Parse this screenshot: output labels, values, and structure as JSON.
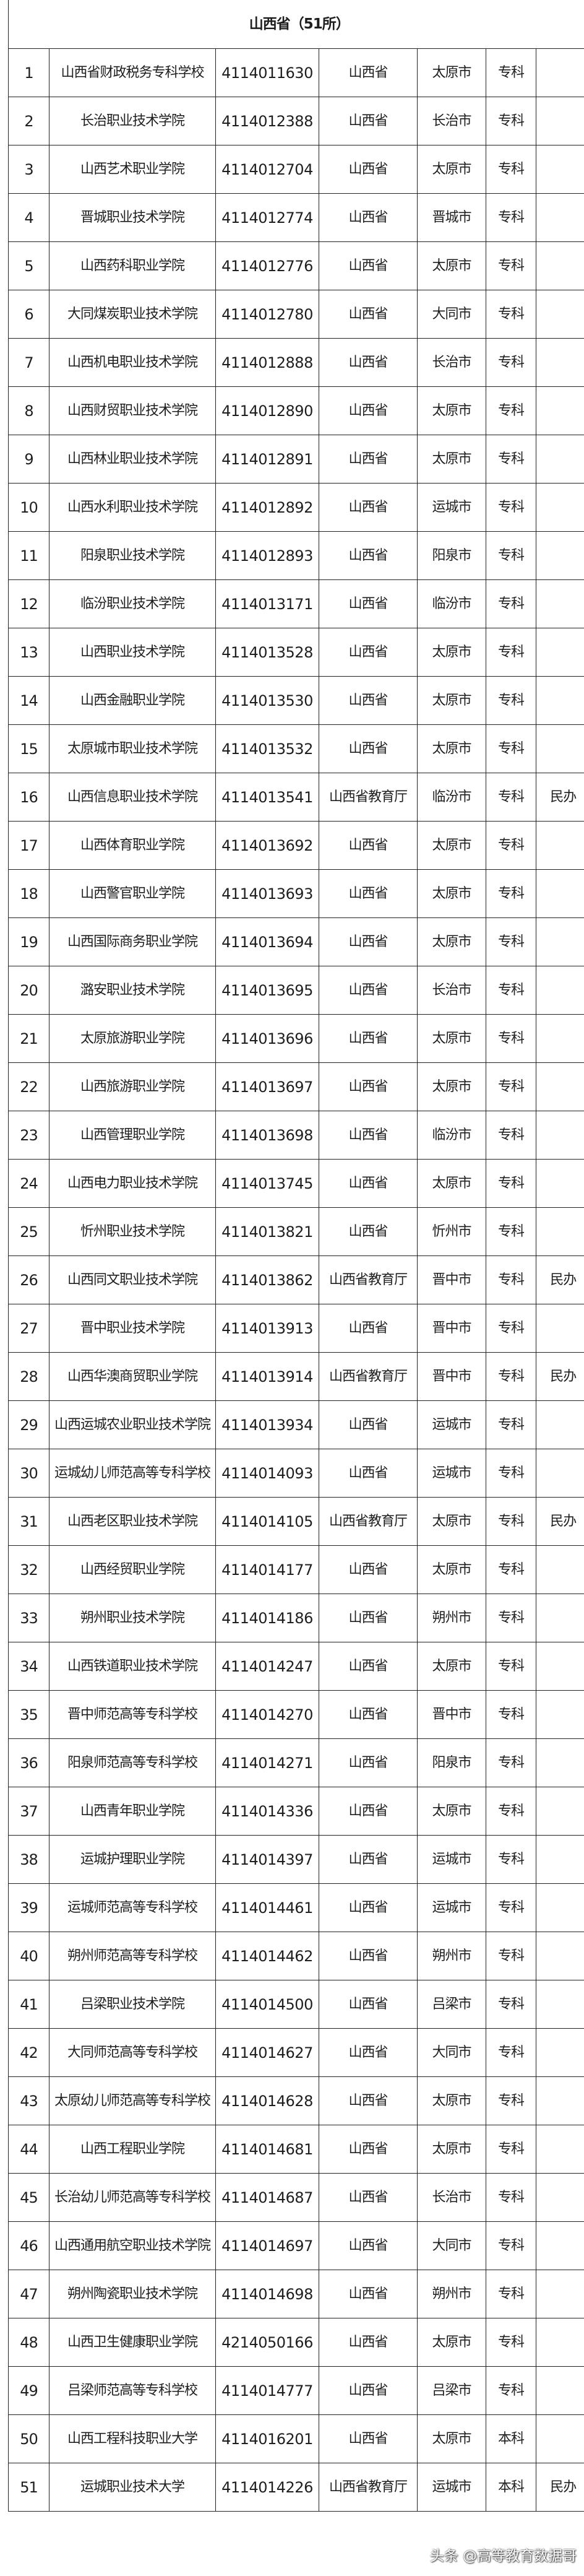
{
  "title": "山西省（51所）",
  "watermark": "头条 @高等教育数据哥",
  "rows": [
    [
      "1",
      "山西省财政税务专科学校",
      "4114011630",
      "山西省",
      "太原市",
      "专科",
      ""
    ],
    [
      "2",
      "长治职业技术学院",
      "4114012388",
      "山西省",
      "长治市",
      "专科",
      ""
    ],
    [
      "3",
      "山西艺术职业学院",
      "4114012704",
      "山西省",
      "太原市",
      "专科",
      ""
    ],
    [
      "4",
      "晋城职业技术学院",
      "4114012774",
      "山西省",
      "晋城市",
      "专科",
      ""
    ],
    [
      "5",
      "山西药科职业学院",
      "4114012776",
      "山西省",
      "太原市",
      "专科",
      ""
    ],
    [
      "6",
      "大同煤炭职业技术学院",
      "4114012780",
      "山西省",
      "大同市",
      "专科",
      ""
    ],
    [
      "7",
      "山西机电职业技术学院",
      "4114012888",
      "山西省",
      "长治市",
      "专科",
      ""
    ],
    [
      "8",
      "山西财贸职业技术学院",
      "4114012890",
      "山西省",
      "太原市",
      "专科",
      ""
    ],
    [
      "9",
      "山西林业职业技术学院",
      "4114012891",
      "山西省",
      "太原市",
      "专科",
      ""
    ],
    [
      "10",
      "山西水利职业技术学院",
      "4114012892",
      "山西省",
      "运城市",
      "专科",
      ""
    ],
    [
      "11",
      "阳泉职业技术学院",
      "4114012893",
      "山西省",
      "阳泉市",
      "专科",
      ""
    ],
    [
      "12",
      "临汾职业技术学院",
      "4114013171",
      "山西省",
      "临汾市",
      "专科",
      ""
    ],
    [
      "13",
      "山西职业技术学院",
      "4114013528",
      "山西省",
      "太原市",
      "专科",
      ""
    ],
    [
      "14",
      "山西金融职业学院",
      "4114013530",
      "山西省",
      "太原市",
      "专科",
      ""
    ],
    [
      "15",
      "太原城市职业技术学院",
      "4114013532",
      "山西省",
      "太原市",
      "专科",
      ""
    ],
    [
      "16",
      "山西信息职业技术学院",
      "4114013541",
      "山西省教育厅",
      "临汾市",
      "专科",
      "民办"
    ],
    [
      "17",
      "山西体育职业学院",
      "4114013692",
      "山西省",
      "太原市",
      "专科",
      ""
    ],
    [
      "18",
      "山西警官职业学院",
      "4114013693",
      "山西省",
      "太原市",
      "专科",
      ""
    ],
    [
      "19",
      "山西国际商务职业学院",
      "4114013694",
      "山西省",
      "太原市",
      "专科",
      ""
    ],
    [
      "20",
      "潞安职业技术学院",
      "4114013695",
      "山西省",
      "长治市",
      "专科",
      ""
    ],
    [
      "21",
      "太原旅游职业学院",
      "4114013696",
      "山西省",
      "太原市",
      "专科",
      ""
    ],
    [
      "22",
      "山西旅游职业学院",
      "4114013697",
      "山西省",
      "太原市",
      "专科",
      ""
    ],
    [
      "23",
      "山西管理职业学院",
      "4114013698",
      "山西省",
      "临汾市",
      "专科",
      ""
    ],
    [
      "24",
      "山西电力职业技术学院",
      "4114013745",
      "山西省",
      "太原市",
      "专科",
      ""
    ],
    [
      "25",
      "忻州职业技术学院",
      "4114013821",
      "山西省",
      "忻州市",
      "专科",
      ""
    ],
    [
      "26",
      "山西同文职业技术学院",
      "4114013862",
      "山西省教育厅",
      "晋中市",
      "专科",
      "民办"
    ],
    [
      "27",
      "晋中职业技术学院",
      "4114013913",
      "山西省",
      "晋中市",
      "专科",
      ""
    ],
    [
      "28",
      "山西华澳商贸职业学院",
      "4114013914",
      "山西省教育厅",
      "晋中市",
      "专科",
      "民办"
    ],
    [
      "29",
      "山西运城农业职业技术学院",
      "4114013934",
      "山西省",
      "运城市",
      "专科",
      ""
    ],
    [
      "30",
      "运城幼儿师范高等专科学校",
      "4114014093",
      "山西省",
      "运城市",
      "专科",
      ""
    ],
    [
      "31",
      "山西老区职业技术学院",
      "4114014105",
      "山西省教育厅",
      "太原市",
      "专科",
      "民办"
    ],
    [
      "32",
      "山西经贸职业学院",
      "4114014177",
      "山西省",
      "太原市",
      "专科",
      ""
    ],
    [
      "33",
      "朔州职业技术学院",
      "4114014186",
      "山西省",
      "朔州市",
      "专科",
      ""
    ],
    [
      "34",
      "山西铁道职业技术学院",
      "4114014247",
      "山西省",
      "太原市",
      "专科",
      ""
    ],
    [
      "35",
      "晋中师范高等专科学校",
      "4114014270",
      "山西省",
      "晋中市",
      "专科",
      ""
    ],
    [
      "36",
      "阳泉师范高等专科学校",
      "4114014271",
      "山西省",
      "阳泉市",
      "专科",
      ""
    ],
    [
      "37",
      "山西青年职业学院",
      "4114014336",
      "山西省",
      "太原市",
      "专科",
      ""
    ],
    [
      "38",
      "运城护理职业学院",
      "4114014397",
      "山西省",
      "运城市",
      "专科",
      ""
    ],
    [
      "39",
      "运城师范高等专科学校",
      "4114014461",
      "山西省",
      "运城市",
      "专科",
      ""
    ],
    [
      "40",
      "朔州师范高等专科学校",
      "4114014462",
      "山西省",
      "朔州市",
      "专科",
      ""
    ],
    [
      "41",
      "吕梁职业技术学院",
      "4114014500",
      "山西省",
      "吕梁市",
      "专科",
      ""
    ],
    [
      "42",
      "大同师范高等专科学校",
      "4114014627",
      "山西省",
      "大同市",
      "专科",
      ""
    ],
    [
      "43",
      "太原幼儿师范高等专科学校",
      "4114014628",
      "山西省",
      "太原市",
      "专科",
      ""
    ],
    [
      "44",
      "山西工程职业学院",
      "4114014681",
      "山西省",
      "太原市",
      "专科",
      ""
    ],
    [
      "45",
      "长治幼儿师范高等专科学校",
      "4114014687",
      "山西省",
      "长治市",
      "专科",
      ""
    ],
    [
      "46",
      "山西通用航空职业技术学院",
      "4114014697",
      "山西省",
      "大同市",
      "专科",
      ""
    ],
    [
      "47",
      "朔州陶瓷职业技术学院",
      "4114014698",
      "山西省",
      "朔州市",
      "专科",
      ""
    ],
    [
      "48",
      "山西卫生健康职业学院",
      "4214050166",
      "山西省",
      "太原市",
      "专科",
      ""
    ],
    [
      "49",
      "吕梁师范高等专科学校",
      "4114014777",
      "山西省",
      "吕梁市",
      "专科",
      ""
    ],
    [
      "50",
      "山西工程科技职业大学",
      "4114016201",
      "山西省",
      "太原市",
      "本科",
      ""
    ],
    [
      "51",
      "运城职业技术大学",
      "4114014226",
      "山西省教育厅",
      "运城市",
      "本科",
      "民办"
    ]
  ]
}
